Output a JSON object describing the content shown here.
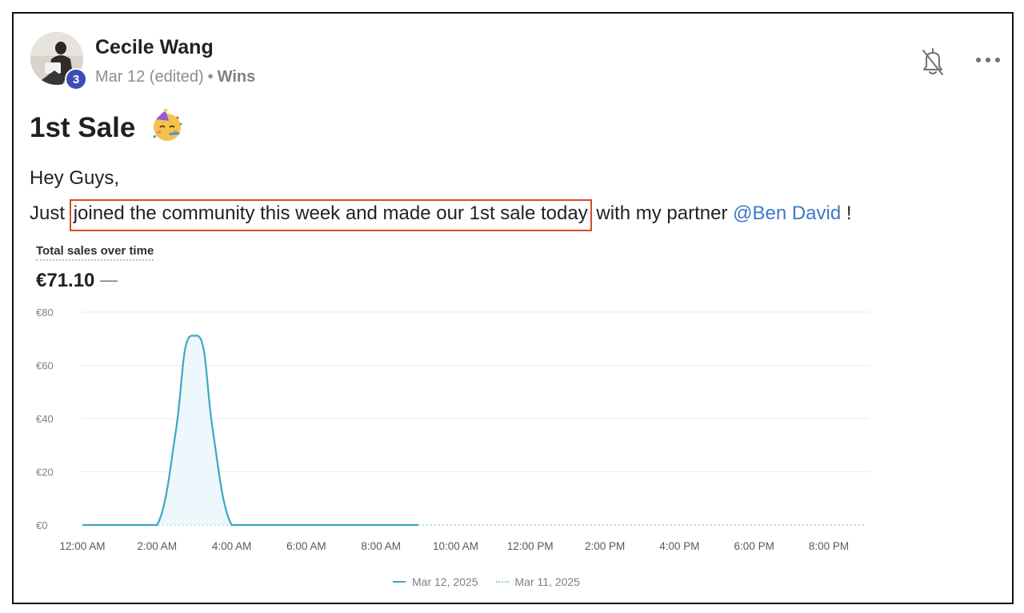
{
  "post": {
    "author": "Cecile Wang",
    "badge_count": "3",
    "date": "Mar 12 (edited)",
    "separator": "•",
    "category": "Wins",
    "title": "1st Sale",
    "title_emoji": "partying-face-emoji",
    "body_line1": "Hey Guys,",
    "body_line2_pre": "Just ",
    "body_line2_highlight": "joined the community this week and made our 1st sale today",
    "body_line2_mid": " with my partner ",
    "mention": "@Ben David",
    "body_line2_end": " !"
  },
  "header_icons": {
    "bell": "bell-off-icon",
    "more": "more-horizontal-icon"
  },
  "chart": {
    "title": "Total sales over time",
    "total": "€71.10",
    "total_change": "—",
    "legend": [
      "Mar 12, 2025",
      "Mar 11, 2025"
    ]
  },
  "colors": {
    "accent_line": "#3fa6c6",
    "highlight_border": "#d64b2a",
    "mention": "#3c78c9",
    "badge": "#3b4db8"
  },
  "chart_data": {
    "type": "line",
    "title": "Total sales over time",
    "x_tick_labels": [
      "12:00 AM",
      "2:00 AM",
      "4:00 AM",
      "6:00 AM",
      "8:00 AM",
      "10:00 AM",
      "12:00 PM",
      "2:00 PM",
      "4:00 PM",
      "6:00 PM",
      "8:00 PM"
    ],
    "y_tick_labels": [
      "€80",
      "€60",
      "€40",
      "€20",
      "€0"
    ],
    "ylim": [
      0,
      80
    ],
    "x_range_hours": [
      0,
      21
    ],
    "grid": true,
    "legend_position": "bottom-center",
    "series": [
      {
        "name": "Mar 12, 2025",
        "style": "solid",
        "x": [
          0,
          1,
          2,
          2.5,
          2.75,
          3,
          3.25,
          3.5,
          4,
          5,
          6,
          7,
          8,
          9
        ],
        "y": [
          0,
          0,
          0,
          35,
          66,
          71.1,
          66,
          35,
          0,
          0,
          0,
          0,
          0,
          0
        ]
      },
      {
        "name": "Mar 11, 2025",
        "style": "dotted",
        "x": [
          0,
          21
        ],
        "y": [
          0,
          0
        ]
      }
    ]
  }
}
